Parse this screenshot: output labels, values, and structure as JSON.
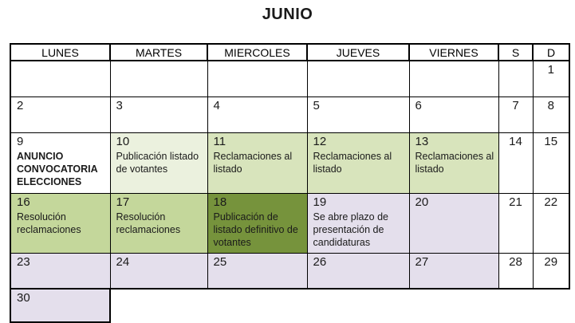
{
  "title": "JUNIO",
  "colors": {
    "pale_green": "#EBF1DE",
    "light_green": "#D8E4BC",
    "mid_green": "#C4D79B",
    "dark_green": "#76933C",
    "lavender": "#E4DFEC"
  },
  "headers": [
    "LUNES",
    "MARTES",
    "MIERCOLES",
    "JUEVES",
    "VIERNES",
    "S",
    "D"
  ],
  "weeks": [
    [
      {
        "day": ""
      },
      {
        "day": ""
      },
      {
        "day": ""
      },
      {
        "day": ""
      },
      {
        "day": ""
      },
      {
        "day": ""
      },
      {
        "day": "1"
      }
    ],
    [
      {
        "day": "2"
      },
      {
        "day": "3"
      },
      {
        "day": "4"
      },
      {
        "day": "5"
      },
      {
        "day": "6"
      },
      {
        "day": "7"
      },
      {
        "day": "8"
      }
    ],
    [
      {
        "day": "9",
        "note": "ANUNCIO CONVOCATORIA ELECCIONES",
        "bold": true
      },
      {
        "day": "10",
        "note": "Publicación listado de votantes",
        "bg": "pale_green"
      },
      {
        "day": "11",
        "note": "Reclamaciones al listado",
        "bg": "light_green"
      },
      {
        "day": "12",
        "note": "Reclamaciones al listado",
        "bg": "light_green"
      },
      {
        "day": "13",
        "note": "Reclamaciones al listado",
        "bg": "light_green"
      },
      {
        "day": "14"
      },
      {
        "day": "15"
      }
    ],
    [
      {
        "day": "16",
        "note": "Resolución reclamaciones",
        "bg": "mid_green"
      },
      {
        "day": "17",
        "note": "Resolución reclamaciones",
        "bg": "mid_green"
      },
      {
        "day": "18",
        "note": "Publicación de listado definitivo de votantes",
        "bg": "dark_green"
      },
      {
        "day": "19",
        "note": "Se abre plazo de presentación de candidaturas",
        "bg": "lavender"
      },
      {
        "day": "20",
        "bg": "lavender"
      },
      {
        "day": "21"
      },
      {
        "day": "22"
      }
    ],
    [
      {
        "day": "23",
        "bg": "lavender"
      },
      {
        "day": "24",
        "bg": "lavender"
      },
      {
        "day": "25",
        "bg": "lavender"
      },
      {
        "day": "26",
        "bg": "lavender"
      },
      {
        "day": "27",
        "bg": "lavender"
      },
      {
        "day": "28"
      },
      {
        "day": "29"
      }
    ],
    [
      {
        "day": "30",
        "bg": "lavender"
      },
      {
        "hidden": true
      },
      {
        "hidden": true
      },
      {
        "hidden": true
      },
      {
        "hidden": true
      },
      {
        "hidden": true
      },
      {
        "hidden": true
      }
    ]
  ]
}
